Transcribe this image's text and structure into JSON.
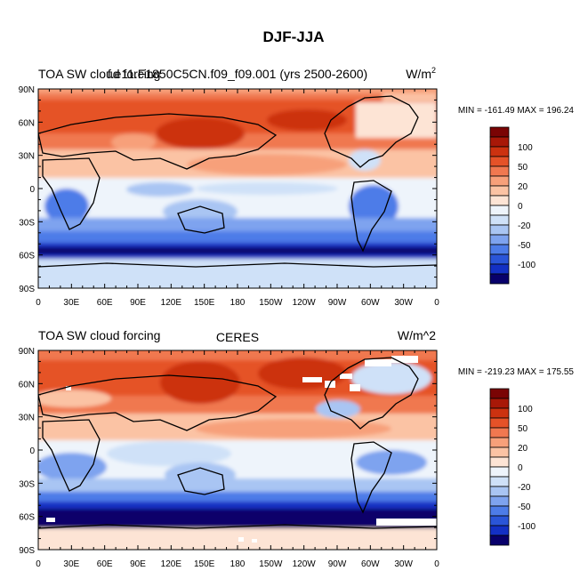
{
  "figure": {
    "title": "DJF-JJA"
  },
  "colors": {
    "palette": [
      "#08006b",
      "#1330c4",
      "#2a55d8",
      "#4d7ce8",
      "#7ea3ef",
      "#a9c5f3",
      "#cfe1f8",
      "#eef4fb",
      "#fde4d5",
      "#fbc3a4",
      "#f7a07a",
      "#f07850",
      "#e55228",
      "#cc3210",
      "#a81808",
      "#7a0404"
    ],
    "land_outline": "#000000",
    "missing": "#ffffff"
  },
  "chart_data": [
    {
      "type": "heatmap",
      "title_left": "TOA SW cloud forcing",
      "title_center": "f.e11.F1850C5CN.f09_f09.001 (yrs 2500-2600)",
      "title_right_base": "W/m",
      "title_right_sup": "2",
      "stats": "MIN = -161.49 MAX = 196.24",
      "min": -161.49,
      "max": 196.24,
      "x_tick_labels": [
        "0",
        "30E",
        "60E",
        "90E",
        "120E",
        "150E",
        "180",
        "150W",
        "120W",
        "90W",
        "60W",
        "30W",
        "0"
      ],
      "y_tick_labels": [
        "90N",
        "60N",
        "30N",
        "0",
        "30S",
        "60S",
        "90S"
      ],
      "colorbar_labels": [
        "100",
        "50",
        "20",
        "0",
        "-20",
        "-50",
        "-100"
      ]
    },
    {
      "type": "heatmap",
      "title_left": "TOA SW cloud forcing",
      "title_center": "CERES",
      "title_right_base": "W/m^2",
      "title_right_sup": "",
      "stats": "MIN = -219.23 MAX = 175.55",
      "min": -219.23,
      "max": 175.55,
      "x_tick_labels": [
        "0",
        "30E",
        "60E",
        "90E",
        "120E",
        "150E",
        "180",
        "150W",
        "120W",
        "90W",
        "60W",
        "30W",
        "0"
      ],
      "y_tick_labels": [
        "90N",
        "60N",
        "30N",
        "0",
        "30S",
        "60S",
        "90S"
      ],
      "colorbar_labels": [
        "100",
        "50",
        "20",
        "0",
        "-20",
        "-50",
        "-100"
      ]
    }
  ]
}
